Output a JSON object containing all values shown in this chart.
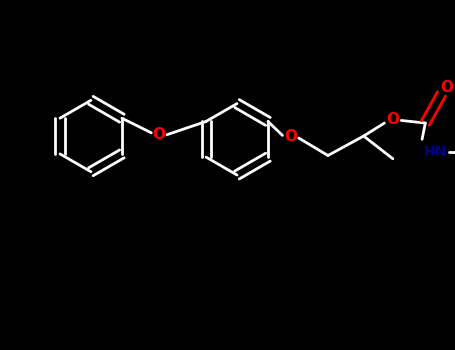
{
  "bg": "#000000",
  "bc": "#ffffff",
  "oc": "#ff0000",
  "nc": "#00008b",
  "lw": 2.0,
  "figsize": [
    4.55,
    3.5
  ],
  "dpi": 100,
  "xlim": [
    -3.5,
    3.5
  ],
  "ylim": [
    -2.5,
    2.5
  ]
}
